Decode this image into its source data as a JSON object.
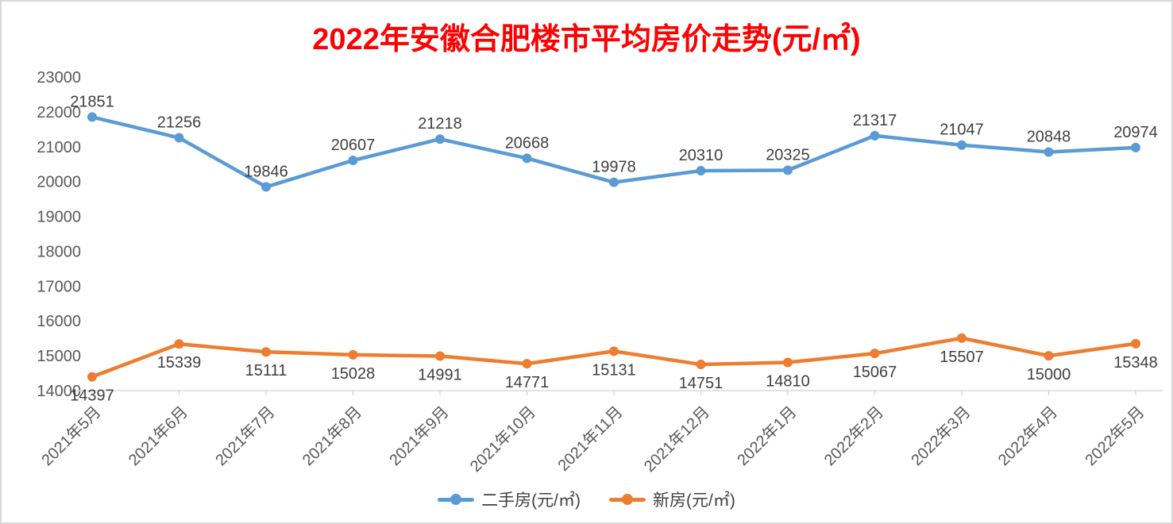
{
  "chart_data": {
    "type": "line",
    "title": "2022年安徽合肥楼市平均房价走势(元/㎡)",
    "title_color": "#FF0000",
    "categories": [
      "2021年5月",
      "2021年6月",
      "2021年7月",
      "2021年8月",
      "2021年9月",
      "2021年10月",
      "2021年11月",
      "2021年12月",
      "2022年1月",
      "2022年2月",
      "2022年3月",
      "2022年4月",
      "2022年5月"
    ],
    "series": [
      {
        "name": "二手房(元/㎡)",
        "color": "#5B9BD5",
        "values": [
          21851,
          21256,
          19846,
          20607,
          21218,
          20668,
          19978,
          20310,
          20325,
          21317,
          21047,
          20848,
          20974
        ],
        "label_position": "above"
      },
      {
        "name": "新房(元/㎡)",
        "color": "#ED7D31",
        "values": [
          14397,
          15339,
          15111,
          15028,
          14991,
          14771,
          15131,
          14751,
          14810,
          15067,
          15507,
          15000,
          15348
        ],
        "label_position": "below"
      }
    ],
    "xlabel": "",
    "ylabel": "",
    "ylim": [
      14000,
      23000
    ],
    "yticks": [
      14000,
      15000,
      16000,
      17000,
      18000,
      19000,
      20000,
      21000,
      22000,
      23000
    ],
    "grid": false,
    "legend_position": "bottom",
    "axis_line_color": "#D9D9D9",
    "axis_label_color": "#595959",
    "data_label_color": "#404040",
    "legend_text_color": "#404040",
    "x_labels_rotation_deg": 45
  }
}
